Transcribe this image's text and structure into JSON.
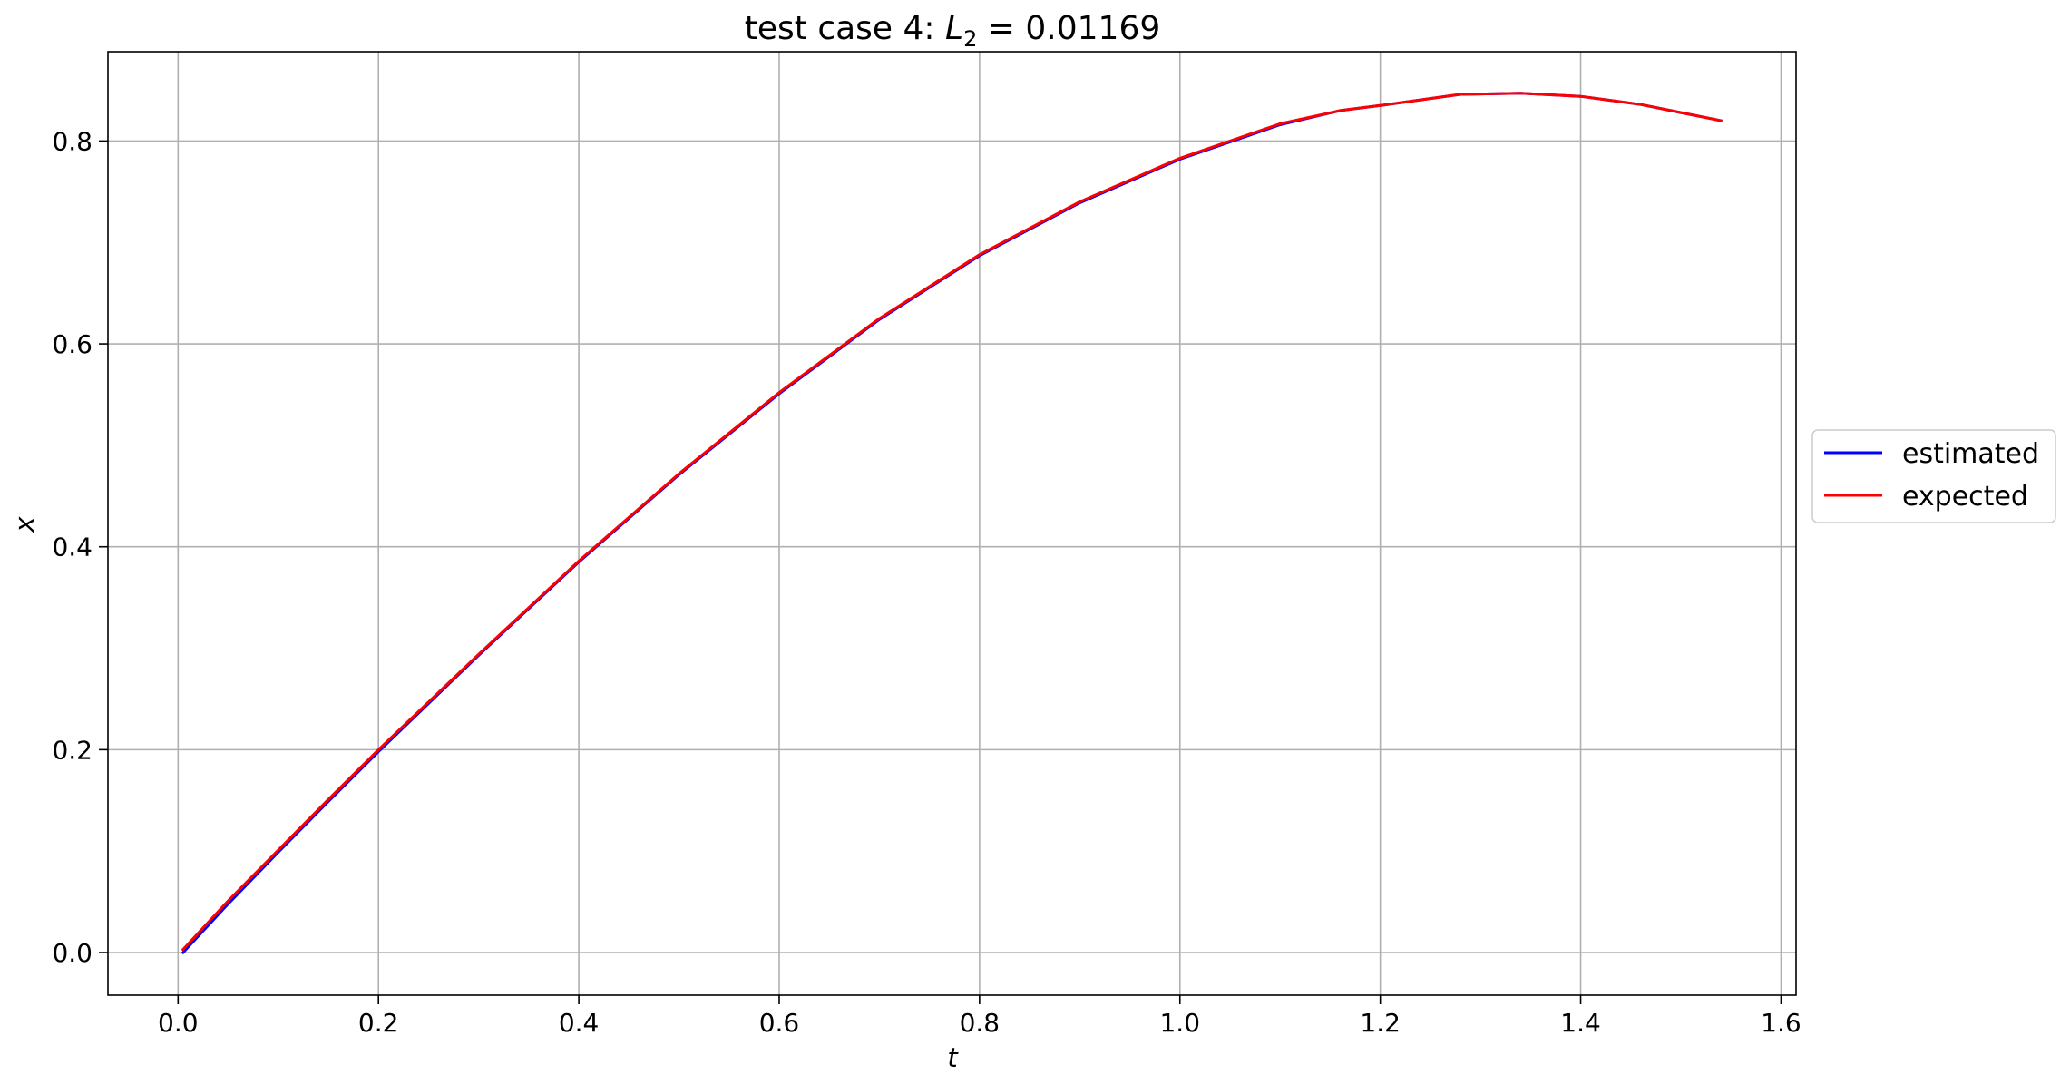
{
  "chart_data": {
    "type": "line",
    "title": {
      "prefix": "test case 4: ",
      "symbol": "L",
      "subscript": "2",
      "suffix": " = 0.01169"
    },
    "xlabel": "t",
    "ylabel": "x",
    "xlim": [
      -0.07,
      1.615
    ],
    "ylim": [
      -0.042,
      0.888
    ],
    "xticks": [
      0.0,
      0.2,
      0.4,
      0.6,
      0.8,
      1.0,
      1.2,
      1.4,
      1.6
    ],
    "xtick_labels": [
      "0.0",
      "0.2",
      "0.4",
      "0.6",
      "0.8",
      "1.0",
      "1.2",
      "1.4",
      "1.6"
    ],
    "yticks": [
      0.0,
      0.2,
      0.4,
      0.6,
      0.8
    ],
    "ytick_labels": [
      "0.0",
      "0.2",
      "0.4",
      "0.6",
      "0.8"
    ],
    "grid": true,
    "legend_position": "right, outside plot area",
    "series": [
      {
        "name": "estimated",
        "color": "#0000ff",
        "x": [
          0.005,
          0.05,
          0.1,
          0.15,
          0.2,
          0.3,
          0.4,
          0.5,
          0.6,
          0.7,
          0.8,
          0.9,
          1.0,
          1.1,
          1.16,
          1.2,
          1.28,
          1.34,
          1.4,
          1.46,
          1.5,
          1.54
        ],
        "y": [
          0.0,
          0.048,
          0.099,
          0.149,
          0.198,
          0.293,
          0.385,
          0.471,
          0.551,
          0.624,
          0.687,
          0.739,
          0.782,
          0.816,
          0.83,
          0.835,
          0.846,
          0.847,
          0.844,
          0.836,
          0.828,
          0.82
        ]
      },
      {
        "name": "expected",
        "color": "#ff0000",
        "x": [
          0.005,
          0.05,
          0.1,
          0.15,
          0.2,
          0.3,
          0.4,
          0.5,
          0.6,
          0.7,
          0.8,
          0.9,
          1.0,
          1.1,
          1.16,
          1.2,
          1.28,
          1.34,
          1.4,
          1.46,
          1.5,
          1.54
        ],
        "y": [
          0.003,
          0.051,
          0.101,
          0.151,
          0.2,
          0.294,
          0.386,
          0.472,
          0.552,
          0.625,
          0.688,
          0.74,
          0.783,
          0.817,
          0.83,
          0.835,
          0.846,
          0.847,
          0.844,
          0.836,
          0.828,
          0.82
        ]
      }
    ]
  }
}
